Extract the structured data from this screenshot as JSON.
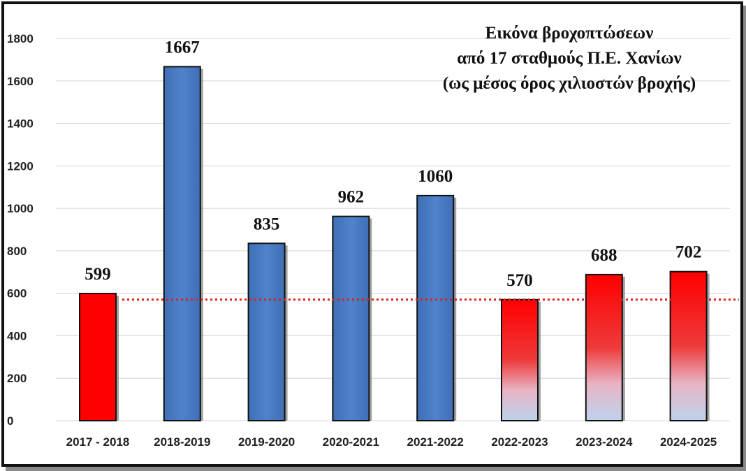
{
  "chart_data": {
    "type": "bar",
    "title_lines": [
      "Εικόνα βροχοπτώσεων",
      "από 17 σταθμούς Π.Ε. Χανίων",
      "(ως μέσος όρος χιλιοστών βροχής)"
    ],
    "categories": [
      "2017 - 2018",
      "2018-2019",
      "2019-2020",
      "2020-2021",
      "2021-2022",
      "2022-2023",
      "2023-2024",
      "2024-2025"
    ],
    "values": [
      599,
      1667,
      835,
      962,
      1060,
      570,
      688,
      702
    ],
    "data_labels": [
      "599",
      "1667",
      "835",
      "962",
      "1060",
      "570",
      "688",
      "702"
    ],
    "bar_styles": [
      "red",
      "blue",
      "blue",
      "blue",
      "blue",
      "red-gradient",
      "red-gradient",
      "red-gradient"
    ],
    "y_ticks": [
      "0",
      "200",
      "400",
      "600",
      "800",
      "1000",
      "1200",
      "1400",
      "1600",
      "1800"
    ],
    "ylim": [
      0,
      1800
    ],
    "reference_line": 570,
    "grid": true,
    "colors": {
      "blue": "#4a7cc4",
      "red": "#ff0000",
      "gradient_bottom": "#bdd3ee",
      "reference_line": "#e0201c",
      "grid": "#d4d4d4"
    }
  }
}
